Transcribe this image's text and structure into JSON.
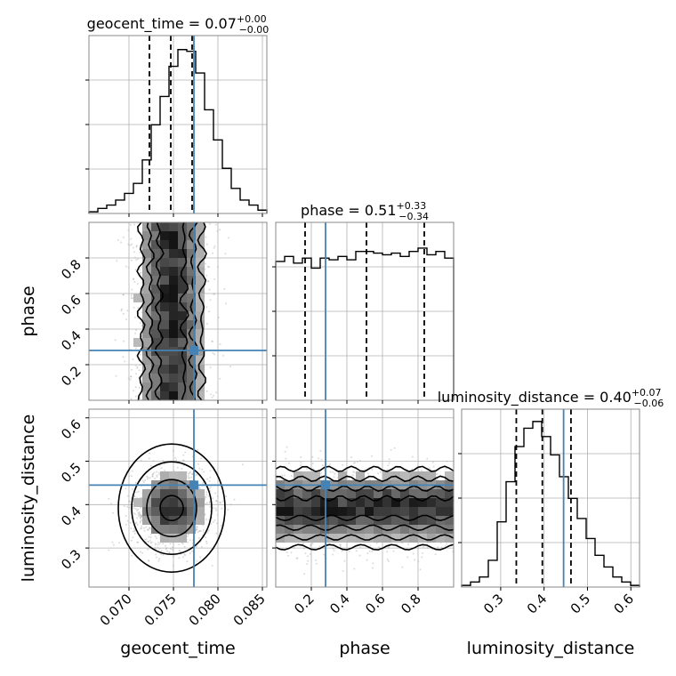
{
  "chart_data": {
    "type": "corner",
    "parameters": [
      {
        "key": "geocent_time",
        "label": "geocent_time",
        "range": [
          0.0655,
          0.0855
        ],
        "ticks": [
          0.07,
          0.075,
          0.08,
          0.085
        ],
        "tick_labels": [
          "0.070",
          "0.075",
          "0.080",
          "0.085"
        ],
        "truth": 0.0773,
        "quantiles": [
          0.0723,
          0.0747,
          0.0771
        ],
        "title": {
          "name": "geocent_time = 0.07",
          "sup": "+0.00",
          "sub": "−0.00"
        }
      },
      {
        "key": "phase",
        "label": "phase",
        "range": [
          0.0,
          1.0
        ],
        "ticks": [
          0.2,
          0.4,
          0.6,
          0.8
        ],
        "tick_labels": [
          "0.2",
          "0.4",
          "0.6",
          "0.8"
        ],
        "truth": 0.28,
        "quantiles": [
          0.165,
          0.51,
          0.835
        ],
        "title": {
          "name": "phase = 0.51",
          "sup": "+0.33",
          "sub": "−0.34"
        }
      },
      {
        "key": "luminosity_distance",
        "label": "luminosity_distance",
        "range": [
          0.21,
          0.62
        ],
        "ticks": [
          0.3,
          0.4,
          0.5,
          0.6
        ],
        "tick_labels": [
          "0.3",
          "0.4",
          "0.5",
          "0.6"
        ],
        "truth": 0.445,
        "quantiles": [
          0.336,
          0.396,
          0.462
        ],
        "title": {
          "name": "luminosity_distance = 0.40",
          "sup": "+0.07",
          "sub": "−0.06"
        }
      }
    ],
    "histograms": {
      "geocent_time": [
        0.01,
        0.03,
        0.05,
        0.08,
        0.12,
        0.18,
        0.32,
        0.53,
        0.7,
        0.88,
        0.98,
        0.97,
        0.84,
        0.62,
        0.44,
        0.27,
        0.15,
        0.08,
        0.05,
        0.02
      ],
      "phase": [
        0.83,
        0.86,
        0.82,
        0.85,
        0.79,
        0.85,
        0.84,
        0.86,
        0.84,
        0.89,
        0.89,
        0.88,
        0.87,
        0.88,
        0.86,
        0.89,
        0.91,
        0.87,
        0.89,
        0.85
      ],
      "luminosity_distance": [
        0.01,
        0.03,
        0.06,
        0.16,
        0.39,
        0.63,
        0.84,
        0.95,
        0.99,
        0.9,
        0.79,
        0.66,
        0.53,
        0.41,
        0.29,
        0.19,
        0.12,
        0.06,
        0.03,
        0.01
      ]
    },
    "point_color": "#999999",
    "truth_color": "#4682b4",
    "grid": true
  }
}
